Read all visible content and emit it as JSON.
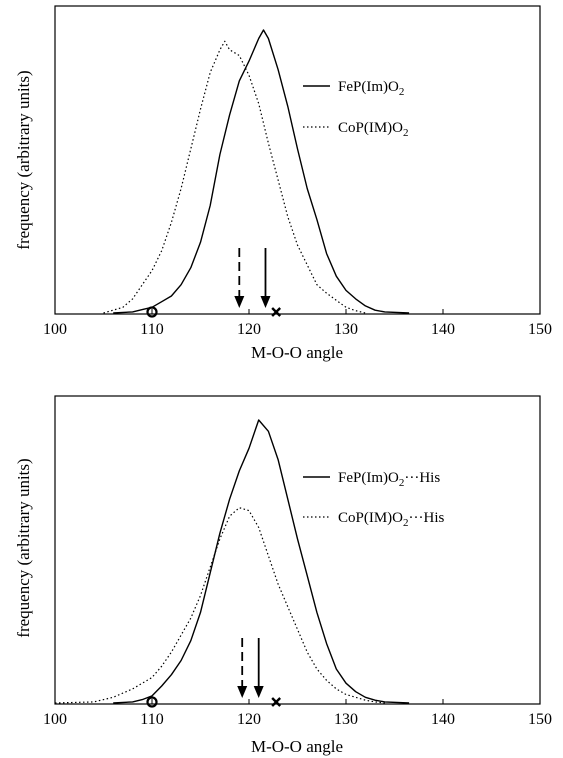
{
  "chart_data": [
    {
      "type": "line",
      "xlabel": "M-O-O angle",
      "ylabel": "frequency (arbitrary units)",
      "xlim": [
        100,
        150
      ],
      "xticks": [
        "100",
        "110",
        "120",
        "130",
        "140",
        "150"
      ],
      "ylim": [
        0,
        1
      ],
      "grid": false,
      "legend_position": "right",
      "series": [
        {
          "name": "FeP(Im)O2",
          "name_main": "FeP(Im)O",
          "name_sub": "2",
          "name_suffix": "",
          "style": "solid",
          "x": [
            106,
            108,
            109,
            110,
            111,
            112,
            113,
            114,
            115,
            116,
            117,
            118,
            119,
            120,
            121,
            121.5,
            122,
            123,
            124,
            125,
            126,
            127,
            128,
            129,
            130,
            131,
            132,
            133,
            134,
            136.5
          ],
          "y": [
            0.0,
            0.004,
            0.012,
            0.02,
            0.04,
            0.06,
            0.1,
            0.16,
            0.25,
            0.38,
            0.56,
            0.7,
            0.82,
            0.89,
            0.97,
            1.0,
            0.97,
            0.86,
            0.73,
            0.58,
            0.44,
            0.33,
            0.21,
            0.13,
            0.08,
            0.05,
            0.025,
            0.01,
            0.004,
            0.0
          ]
        },
        {
          "name": "CoP(IM)O2",
          "name_main": "CoP(IM)O",
          "name_sub": "2",
          "name_suffix": "",
          "style": "dotted",
          "x": [
            105,
            107,
            108,
            109,
            110,
            111,
            112,
            113,
            114,
            115,
            116,
            117,
            117.5,
            118,
            119,
            120,
            121,
            122,
            123,
            124,
            125,
            126,
            127,
            128,
            129,
            130,
            131,
            132
          ],
          "y": [
            0.0,
            0.02,
            0.05,
            0.1,
            0.15,
            0.22,
            0.32,
            0.44,
            0.58,
            0.72,
            0.85,
            0.93,
            0.96,
            0.93,
            0.91,
            0.84,
            0.74,
            0.6,
            0.47,
            0.34,
            0.24,
            0.17,
            0.1,
            0.07,
            0.045,
            0.02,
            0.008,
            0.0
          ]
        }
      ],
      "markers": [
        {
          "symbol": "o",
          "x": 110
        },
        {
          "symbol": "x",
          "x": 122.8
        }
      ],
      "arrows": [
        {
          "series": "CoP(IM)O2",
          "style": "dashed",
          "x": 119
        },
        {
          "series": "FeP(Im)O2",
          "style": "solid",
          "x": 121.7
        }
      ]
    },
    {
      "type": "line",
      "xlabel": "M-O-O angle",
      "ylabel": "frequency (arbitrary units)",
      "xlim": [
        100,
        150
      ],
      "xticks": [
        "100",
        "110",
        "120",
        "130",
        "140",
        "150"
      ],
      "ylim": [
        0,
        1
      ],
      "grid": false,
      "legend_position": "right",
      "series": [
        {
          "name": "FeP(Im)O2···His",
          "name_main": "FeP(Im)O",
          "name_sub": "2",
          "name_suffix": "···His",
          "style": "solid",
          "x": [
            106,
            108,
            109,
            110,
            111,
            112,
            113,
            114,
            115,
            116,
            117,
            118,
            119,
            120,
            121,
            122,
            123,
            124,
            125,
            126,
            127,
            128,
            129,
            130,
            131,
            132,
            133,
            134,
            136.5
          ],
          "y": [
            0.0,
            0.004,
            0.012,
            0.025,
            0.06,
            0.1,
            0.15,
            0.22,
            0.32,
            0.46,
            0.6,
            0.72,
            0.82,
            0.9,
            1.0,
            0.96,
            0.86,
            0.72,
            0.58,
            0.45,
            0.32,
            0.21,
            0.12,
            0.07,
            0.04,
            0.02,
            0.01,
            0.004,
            0.0
          ]
        },
        {
          "name": "CoP(IM)O2···His",
          "name_main": "CoP(IM)O",
          "name_sub": "2",
          "name_suffix": "···His",
          "style": "dotted",
          "x": [
            100,
            104,
            106,
            107,
            108,
            109,
            110,
            111,
            112,
            113,
            114,
            115,
            116,
            117,
            118,
            119,
            120,
            121,
            122,
            123,
            124,
            125,
            126,
            127,
            128,
            129,
            130,
            131,
            132,
            133,
            134
          ],
          "y": [
            0.0,
            0.004,
            0.02,
            0.035,
            0.05,
            0.07,
            0.09,
            0.13,
            0.18,
            0.24,
            0.3,
            0.38,
            0.48,
            0.58,
            0.66,
            0.69,
            0.68,
            0.62,
            0.52,
            0.42,
            0.34,
            0.26,
            0.18,
            0.12,
            0.08,
            0.05,
            0.03,
            0.02,
            0.01,
            0.004,
            0.0
          ]
        }
      ],
      "markers": [
        {
          "symbol": "o",
          "x": 110
        },
        {
          "symbol": "x",
          "x": 122.8
        }
      ],
      "arrows": [
        {
          "series": "CoP(IM)O2···His",
          "style": "dashed",
          "x": 119.3
        },
        {
          "series": "FeP(Im)O2···His",
          "style": "solid",
          "x": 121
        }
      ]
    }
  ]
}
